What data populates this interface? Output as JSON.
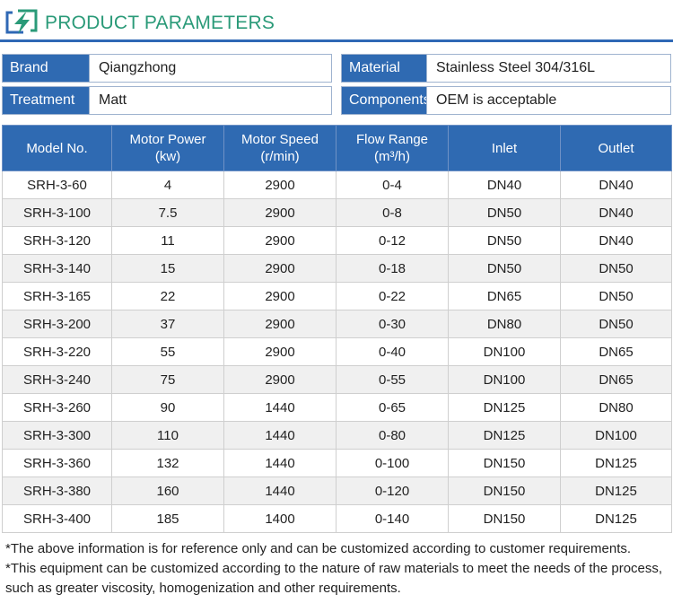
{
  "header": {
    "title": "PRODUCT PARAMETERS"
  },
  "specs": {
    "brand": {
      "label": "Brand",
      "value": "Qiangzhong"
    },
    "material": {
      "label": "Material",
      "value": "Stainless Steel 304/316L"
    },
    "treatment": {
      "label": "Treatment",
      "value": "Matt"
    },
    "components": {
      "label": "Components",
      "value": "OEM is acceptable"
    }
  },
  "table": {
    "headers": [
      {
        "line1": "Model No.",
        "line2": ""
      },
      {
        "line1": "Motor Power",
        "line2": "(kw)"
      },
      {
        "line1": "Motor Speed",
        "line2": "(r/min)"
      },
      {
        "line1": "Flow Range",
        "line2": "(m³/h)"
      },
      {
        "line1": "Inlet",
        "line2": ""
      },
      {
        "line1": "Outlet",
        "line2": ""
      }
    ],
    "rows": [
      [
        "SRH-3-60",
        "4",
        "2900",
        "0-4",
        "DN40",
        "DN40"
      ],
      [
        "SRH-3-100",
        "7.5",
        "2900",
        "0-8",
        "DN50",
        "DN40"
      ],
      [
        "SRH-3-120",
        "11",
        "2900",
        "0-12",
        "DN50",
        "DN40"
      ],
      [
        "SRH-3-140",
        "15",
        "2900",
        "0-18",
        "DN50",
        "DN50"
      ],
      [
        "SRH-3-165",
        "22",
        "2900",
        "0-22",
        "DN65",
        "DN50"
      ],
      [
        "SRH-3-200",
        "37",
        "2900",
        "0-30",
        "DN80",
        "DN50"
      ],
      [
        "SRH-3-220",
        "55",
        "2900",
        "0-40",
        "DN100",
        "DN65"
      ],
      [
        "SRH-3-240",
        "75",
        "2900",
        "0-55",
        "DN100",
        "DN65"
      ],
      [
        "SRH-3-260",
        "90",
        "1440",
        "0-65",
        "DN125",
        "DN80"
      ],
      [
        "SRH-3-300",
        "110",
        "1440",
        "0-80",
        "DN125",
        "DN100"
      ],
      [
        "SRH-3-360",
        "132",
        "1440",
        "0-100",
        "DN150",
        "DN125"
      ],
      [
        "SRH-3-380",
        "160",
        "1440",
        "0-120",
        "DN150",
        "DN125"
      ],
      [
        "SRH-3-400",
        "185",
        "1400",
        "0-140",
        "DN150",
        "DN125"
      ]
    ]
  },
  "notes": [
    "*The above information is for reference only and can be customized according to customer requirements.",
    "*This equipment can be customized according to the nature of raw materials to meet the needs of the process, such as greater viscosity, homogenization and other requirements."
  ],
  "colors": {
    "accent": "#2f6ab2",
    "title": "#2a9a78",
    "rule": "#2f68b5",
    "row_alt": "#f0f0f0"
  },
  "icons": {
    "logo": "lightning-bolt-logo-icon"
  }
}
